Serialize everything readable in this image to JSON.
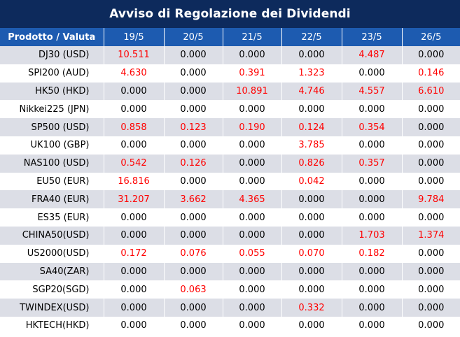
{
  "title": "Avviso di Regolazione dei Dividendi",
  "header": {
    "product_label": "Prodotto / Valuta",
    "dates": [
      "19/5",
      "20/5",
      "21/5",
      "22/5",
      "23/5",
      "26/5"
    ]
  },
  "colors": {
    "title_bg": "#0d2a5c",
    "header_bg": "#1d5bb0",
    "row_shade": "#dcdee6",
    "highlight_value": "#ff0000"
  },
  "rows": [
    {
      "product": "DJ30 (USD)",
      "values": [
        "10.511",
        "0.000",
        "0.000",
        "0.000",
        "4.487",
        "0.000"
      ]
    },
    {
      "product": "SPI200 (AUD)",
      "values": [
        "4.630",
        "0.000",
        "0.391",
        "1.323",
        "0.000",
        "0.146"
      ]
    },
    {
      "product": "HK50 (HKD)",
      "values": [
        "0.000",
        "0.000",
        "10.891",
        "4.746",
        "4.557",
        "6.610"
      ]
    },
    {
      "product": "Nikkei225 (JPN)",
      "values": [
        "0.000",
        "0.000",
        "0.000",
        "0.000",
        "0.000",
        "0.000"
      ]
    },
    {
      "product": "SP500 (USD)",
      "values": [
        "0.858",
        "0.123",
        "0.190",
        "0.124",
        "0.354",
        "0.000"
      ]
    },
    {
      "product": "UK100 (GBP)",
      "values": [
        "0.000",
        "0.000",
        "0.000",
        "3.785",
        "0.000",
        "0.000"
      ]
    },
    {
      "product": "NAS100 (USD)",
      "values": [
        "0.542",
        "0.126",
        "0.000",
        "0.826",
        "0.357",
        "0.000"
      ]
    },
    {
      "product": "EU50 (EUR)",
      "values": [
        "16.816",
        "0.000",
        "0.000",
        "0.042",
        "0.000",
        "0.000"
      ]
    },
    {
      "product": "FRA40 (EUR)",
      "values": [
        "31.207",
        "3.662",
        "4.365",
        "0.000",
        "0.000",
        "9.784"
      ]
    },
    {
      "product": "ES35 (EUR)",
      "values": [
        "0.000",
        "0.000",
        "0.000",
        "0.000",
        "0.000",
        "0.000"
      ]
    },
    {
      "product": "CHINA50(USD)",
      "values": [
        "0.000",
        "0.000",
        "0.000",
        "0.000",
        "1.703",
        "1.374"
      ]
    },
    {
      "product": "US2000(USD)",
      "values": [
        "0.172",
        "0.076",
        "0.055",
        "0.070",
        "0.182",
        "0.000"
      ]
    },
    {
      "product": "SA40(ZAR)",
      "values": [
        "0.000",
        "0.000",
        "0.000",
        "0.000",
        "0.000",
        "0.000"
      ]
    },
    {
      "product": "SGP20(SGD)",
      "values": [
        "0.000",
        "0.063",
        "0.000",
        "0.000",
        "0.000",
        "0.000"
      ]
    },
    {
      "product": "TWINDEX(USD)",
      "values": [
        "0.000",
        "0.000",
        "0.000",
        "0.332",
        "0.000",
        "0.000"
      ]
    },
    {
      "product": "HKTECH(HKD)",
      "values": [
        "0.000",
        "0.000",
        "0.000",
        "0.000",
        "0.000",
        "0.000"
      ]
    }
  ]
}
